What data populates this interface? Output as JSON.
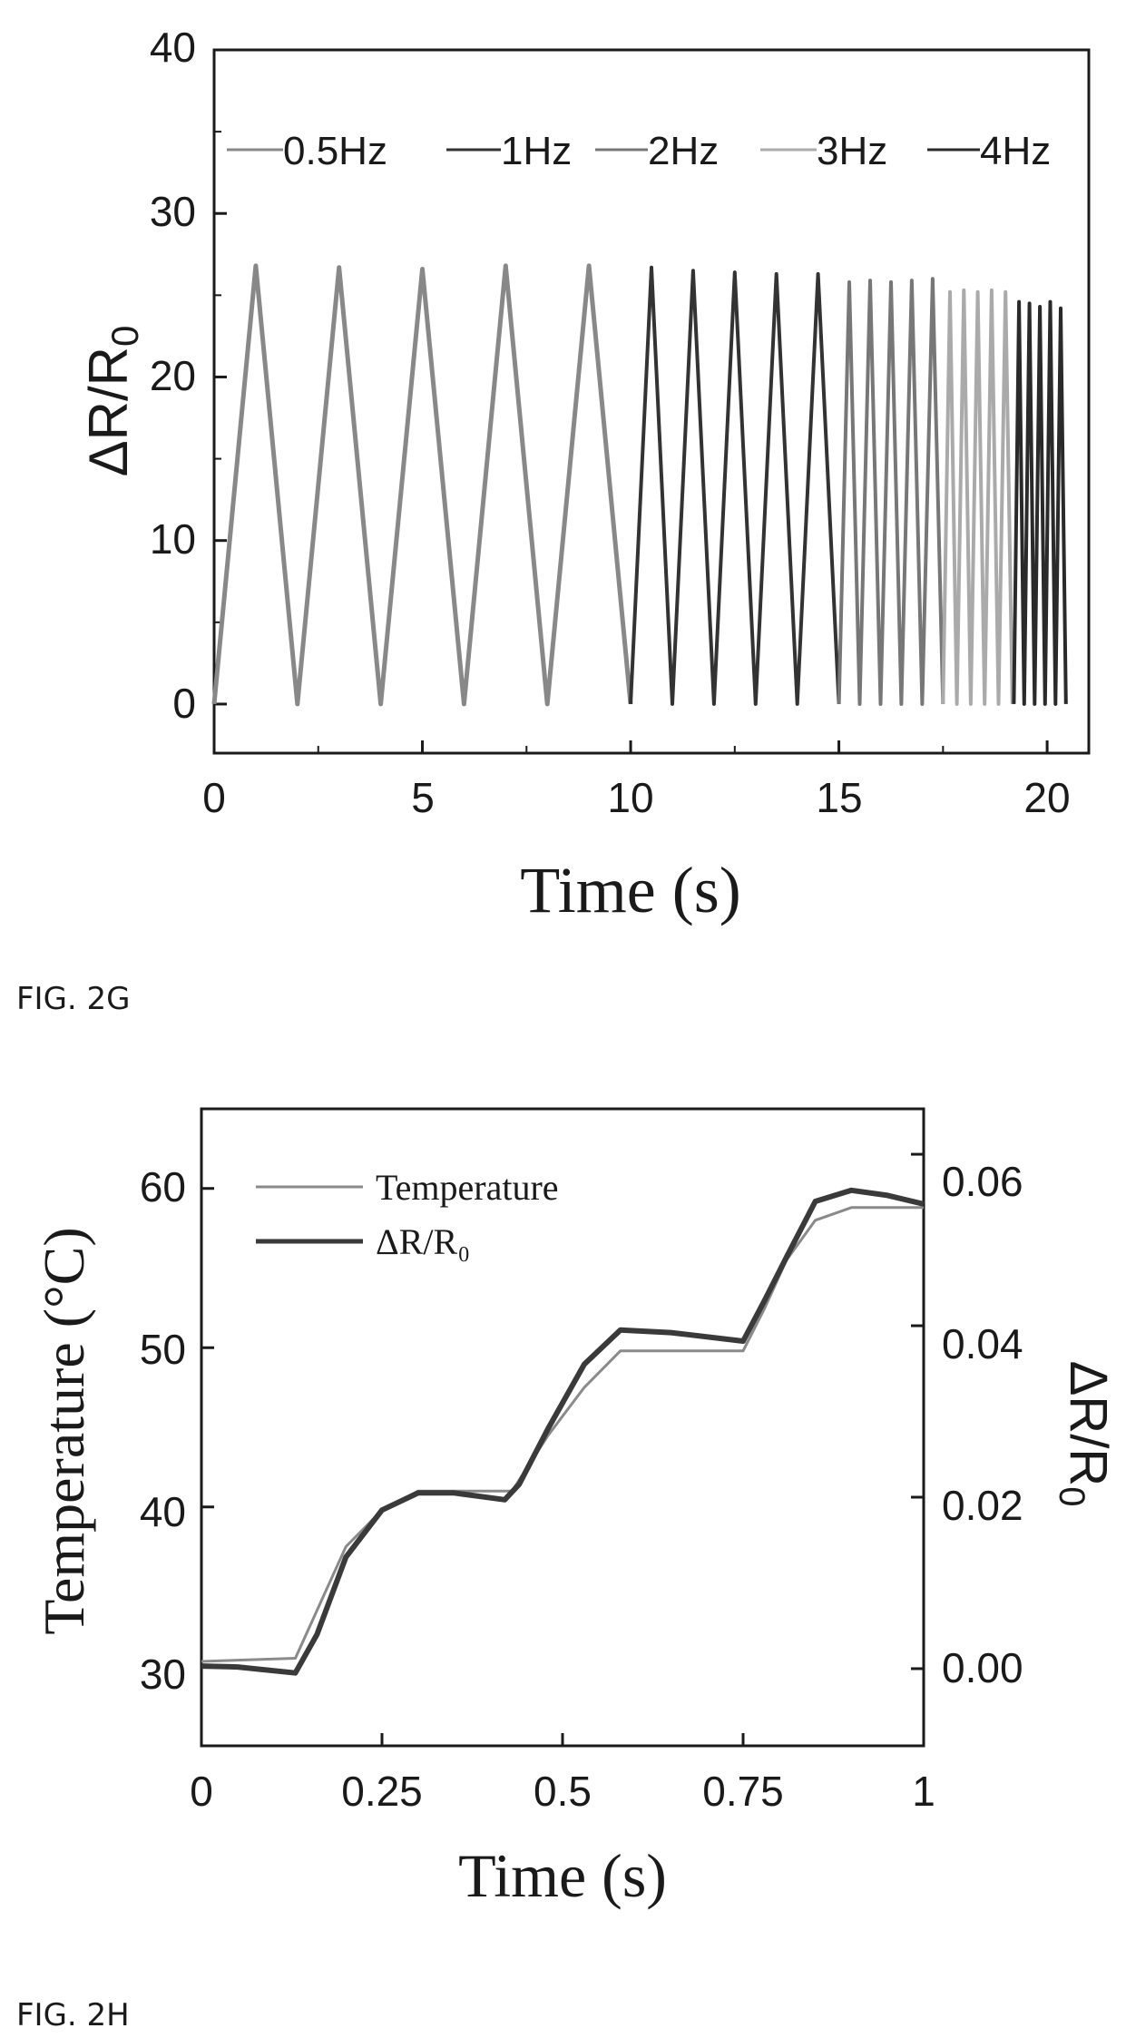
{
  "captions": {
    "fig_g": "FIG. 2G",
    "fig_h": "FIG. 2H"
  },
  "colors": {
    "axis": "#1a1a1a",
    "s05": "#888888",
    "s1": "#333333",
    "s2": "#777777",
    "s3": "#aaaaaa",
    "s4": "#2a2a2a",
    "temp": "#8a8a8a",
    "dr": "#3a3a3a"
  },
  "chart_data": [
    {
      "type": "line",
      "title": "",
      "xlabel": "Time (s)",
      "ylabel": "ΔR/R0",
      "xlim": [
        0,
        21
      ],
      "ylim": [
        -3,
        40
      ],
      "xticks": [
        "0",
        "5",
        "10",
        "15",
        "20"
      ],
      "yticks": [
        "0",
        "10",
        "20",
        "30",
        "40"
      ],
      "legend_position": "top",
      "series": [
        {
          "name": "0.5Hz",
          "frequency_hz": 0.5,
          "t_start": 0,
          "t_end": 10,
          "peak_values": [
            26.8,
            26.7,
            26.6,
            26.8,
            26.8
          ]
        },
        {
          "name": "1Hz",
          "frequency_hz": 1,
          "t_start": 10,
          "t_end": 15,
          "peak_values": [
            26.7,
            26.5,
            26.4,
            26.3,
            26.3
          ]
        },
        {
          "name": "2Hz",
          "frequency_hz": 2,
          "t_start": 15,
          "t_end": 17.5,
          "peak_values": [
            25.8,
            25.9,
            25.8,
            25.9,
            26.0
          ]
        },
        {
          "name": "3Hz",
          "frequency_hz": 3,
          "t_start": 17.5,
          "t_end": 19.2,
          "peak_values": [
            25.2,
            25.3,
            25.2,
            25.3,
            25.2
          ]
        },
        {
          "name": "4Hz",
          "frequency_hz": 4,
          "t_start": 19.2,
          "t_end": 20.5,
          "peak_values": [
            24.6,
            24.5,
            24.3,
            24.6,
            24.2
          ]
        }
      ]
    },
    {
      "type": "line",
      "title": "",
      "xlabel": "Time (s)",
      "ylabel_left": "Temperature (°C)",
      "ylabel_right": "ΔR/R0",
      "xlim": [
        0,
        1
      ],
      "ylim_left": [
        25,
        65
      ],
      "ylim_right": [
        -0.009,
        0.0653
      ],
      "xticks": [
        "0",
        "0.25",
        "0.5",
        "0.75",
        "1"
      ],
      "yticks_left": [
        "30",
        "40",
        "50",
        "60"
      ],
      "yticks_right": [
        "0.00",
        "0.02",
        "0.04",
        "0.06"
      ],
      "legend_position": "top-left",
      "series": [
        {
          "name": "Temperature",
          "axis": "left",
          "x": [
            0,
            0.13,
            0.17,
            0.2,
            0.25,
            0.3,
            0.43,
            0.48,
            0.53,
            0.58,
            0.75,
            0.78,
            0.81,
            0.85,
            0.9,
            1.0
          ],
          "y": [
            30.3,
            30.5,
            34.5,
            37.5,
            39.8,
            41.0,
            41.0,
            44.5,
            47.5,
            49.8,
            49.8,
            52.5,
            55.5,
            58.0,
            58.8,
            58.8
          ]
        },
        {
          "name": "ΔR/R₀",
          "axis": "right",
          "x": [
            0,
            0.05,
            0.13,
            0.16,
            0.2,
            0.25,
            0.3,
            0.35,
            0.42,
            0.44,
            0.48,
            0.53,
            0.58,
            0.65,
            0.75,
            0.78,
            0.81,
            0.85,
            0.9,
            0.95,
            1.0
          ],
          "y": [
            0.0003,
            0.0002,
            -0.0005,
            0.004,
            0.013,
            0.0185,
            0.0205,
            0.0205,
            0.0197,
            0.0215,
            0.028,
            0.0355,
            0.0395,
            0.0392,
            0.0382,
            0.043,
            0.048,
            0.0545,
            0.0558,
            0.0552,
            0.0542
          ]
        }
      ]
    }
  ]
}
